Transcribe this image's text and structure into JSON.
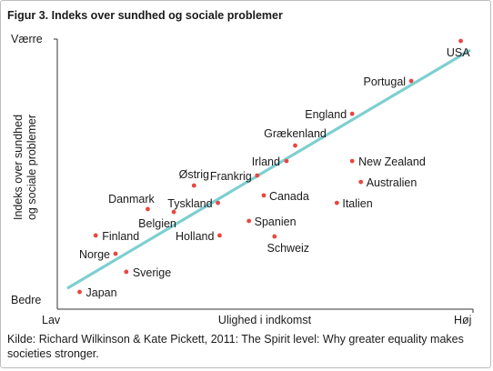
{
  "title": "Figur 3.  Indeks over sundhed og sociale problemer",
  "caption": "Kilde: Richard Wilkinson & Kate Pickett, 2011: The Spirit level: Why greater equality makes societies stronger.",
  "colors": {
    "point": "#e8473f",
    "trend": "#7ecfd1",
    "axis": "#333333",
    "text": "#1a1a1a"
  },
  "chart_data": {
    "type": "scatter",
    "xlabel": "Ulighed i indkomst",
    "ylabel": [
      "Indeks over sundhed",
      "og sociale problemer"
    ],
    "x_ticks": {
      "low": "Lav",
      "high": "Høj"
    },
    "y_ticks": {
      "high": "Værre",
      "low": "Bedre"
    },
    "xlim": [
      0,
      100
    ],
    "ylim": [
      0,
      100
    ],
    "grid": false,
    "points": [
      {
        "label": "USA",
        "x": 97.7,
        "y": 102.1
      },
      {
        "label": "Portugal",
        "x": 85.7,
        "y": 86.6
      },
      {
        "label": "England",
        "x": 71.4,
        "y": 73.9
      },
      {
        "label": "Grækenland",
        "x": 57.6,
        "y": 61.6
      },
      {
        "label": "Irland",
        "x": 55.5,
        "y": 55.6
      },
      {
        "label": "New Zealand",
        "x": 71.4,
        "y": 55.6
      },
      {
        "label": "Frankrig",
        "x": 48.4,
        "y": 50.0
      },
      {
        "label": "Australien",
        "x": 73.5,
        "y": 47.5
      },
      {
        "label": "Østrig",
        "x": 33.1,
        "y": 46.1
      },
      {
        "label": "Canada",
        "x": 50.0,
        "y": 42.3
      },
      {
        "label": "Tyskland",
        "x": 38.9,
        "y": 39.4
      },
      {
        "label": "Italien",
        "x": 67.7,
        "y": 39.4
      },
      {
        "label": "Danmark",
        "x": 21.9,
        "y": 37.0
      },
      {
        "label": "Belgien",
        "x": 28.2,
        "y": 35.9
      },
      {
        "label": "Spanien",
        "x": 46.4,
        "y": 32.4
      },
      {
        "label": "Finland",
        "x": 9.3,
        "y": 26.8
      },
      {
        "label": "Holland",
        "x": 39.3,
        "y": 26.8
      },
      {
        "label": "Schweiz",
        "x": 52.6,
        "y": 26.4
      },
      {
        "label": "Norge",
        "x": 14.1,
        "y": 19.7
      },
      {
        "label": "Sverige",
        "x": 16.7,
        "y": 12.7
      },
      {
        "label": "Japan",
        "x": 5.4,
        "y": 4.9
      }
    ],
    "trendline": {
      "x": [
        2.4,
        100
      ],
      "y": [
        6.3,
        98.6
      ]
    }
  }
}
